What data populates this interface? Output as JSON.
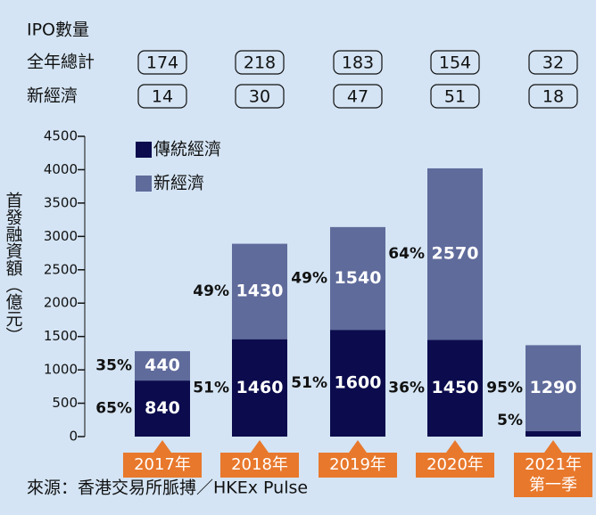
{
  "chart_data": {
    "type": "stacked_bar",
    "ipo_header": "IPO數量",
    "ipo_rows": [
      {
        "name": "全年總計",
        "values": [
          174,
          218,
          183,
          154,
          32
        ]
      },
      {
        "name": "新經濟",
        "values": [
          14,
          30,
          47,
          51,
          18
        ]
      }
    ],
    "y_label": "首發融資額（億元）",
    "categories": [
      [
        "2017年"
      ],
      [
        "2018年"
      ],
      [
        "2019年"
      ],
      [
        "2020年"
      ],
      [
        "2021年",
        "第一季"
      ]
    ],
    "series": [
      {
        "name": "傳統經濟",
        "color": "#0b0b4d",
        "values": [
          840,
          1460,
          1600,
          1450,
          80
        ],
        "share_labels": [
          "65%",
          "51%",
          "51%",
          "36%",
          "5%"
        ]
      },
      {
        "name": "新經濟",
        "color": "#5f6b9b",
        "values": [
          440,
          1430,
          1540,
          2570,
          1290
        ],
        "share_labels": [
          "35%",
          "49%",
          "49%",
          "64%",
          "95%"
        ]
      }
    ],
    "ylim": [
      0,
      4500
    ],
    "yticks": [
      0,
      500,
      1000,
      1500,
      2000,
      2500,
      3000,
      3500,
      4000,
      4500
    ],
    "source": "來源：香港交易所脈搏／HKEx Pulse"
  }
}
